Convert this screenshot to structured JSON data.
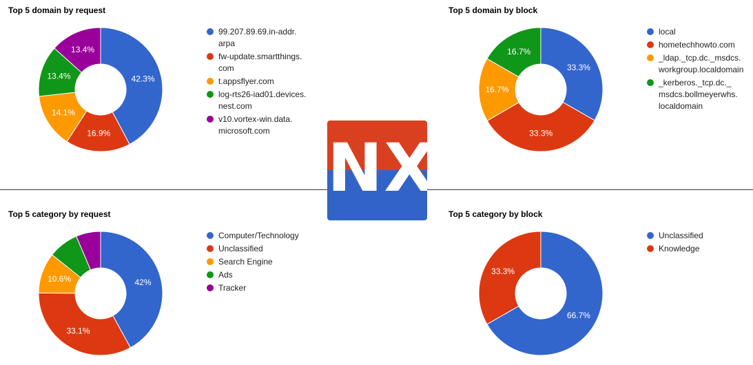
{
  "logo": {
    "text": "NX",
    "top_color": "#d94020",
    "bottom_color": "#3264c8"
  },
  "chart_data": [
    {
      "type": "pie",
      "title": "Top 5 domain by request",
      "legend": "right",
      "categories": [
        "99.207.89.69.in-addr.\narpa",
        "fw-update.smartthings.\ncom",
        "t.appsflyer.com",
        "log-rts26-iad01.devices.\nnest.com",
        "v10.vortex-win.data.\nmicrosoft.com"
      ],
      "values": [
        42.3,
        16.9,
        14.1,
        13.4,
        13.4
      ],
      "labels": [
        "42.3%",
        "16.9%",
        "14.1%",
        "13.4%",
        "13.4%"
      ],
      "colors": [
        "#3366cc",
        "#dc3912",
        "#ff9900",
        "#109618",
        "#990099"
      ]
    },
    {
      "type": "pie",
      "title": "Top 5 domain by block",
      "legend": "right",
      "categories": [
        "local",
        "hometechhowto.com",
        "_ldap._tcp.dc._msdcs.\nworkgroup.localdomain",
        "_kerberos._tcp.dc._\nmsdcs.bollmeyerwhs.\nlocaldomain"
      ],
      "values": [
        33.3,
        33.3,
        16.7,
        16.7
      ],
      "labels": [
        "33.3%",
        "33.3%",
        "16.7%",
        "16.7%"
      ],
      "colors": [
        "#3366cc",
        "#dc3912",
        "#ff9900",
        "#109618"
      ]
    },
    {
      "type": "pie",
      "title": "Top 5 category by request",
      "legend": "right",
      "categories": [
        "Computer/Technology",
        "Unclassified",
        "Search Engine",
        "Ads",
        "Tracker"
      ],
      "values": [
        42,
        33.1,
        10.6,
        7.9,
        6.4
      ],
      "labels": [
        "42%",
        "33.1%",
        "10.6%",
        "",
        ""
      ],
      "colors": [
        "#3366cc",
        "#dc3912",
        "#ff9900",
        "#109618",
        "#990099"
      ]
    },
    {
      "type": "pie",
      "title": "Top 5 category by block",
      "legend": "right",
      "categories": [
        "Unclassified",
        "Knowledge"
      ],
      "values": [
        66.7,
        33.3
      ],
      "labels": [
        "66.7%",
        "33.3%"
      ],
      "colors": [
        "#3366cc",
        "#dc3912"
      ]
    }
  ]
}
